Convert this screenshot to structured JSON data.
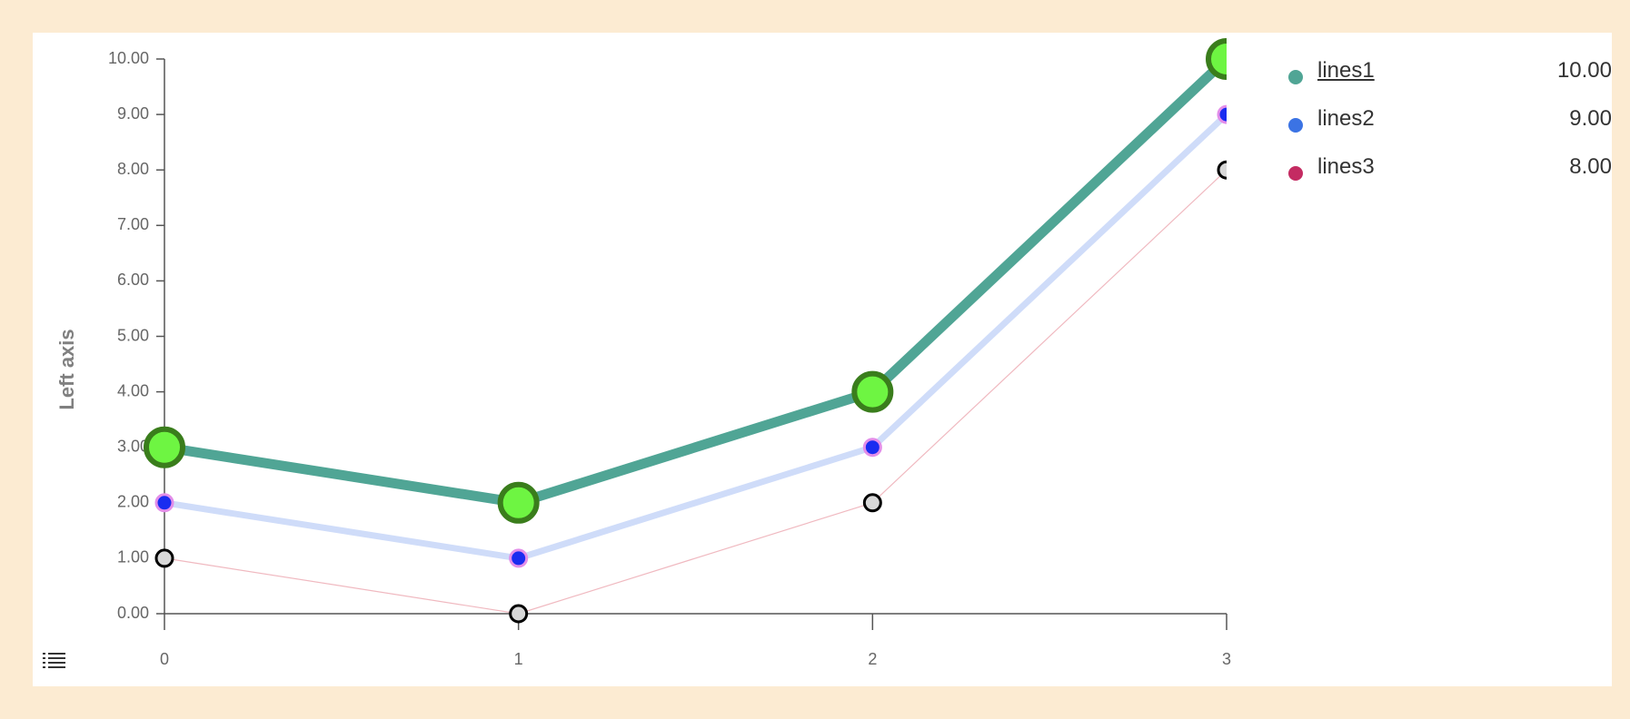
{
  "chart_data": {
    "type": "line",
    "x": [
      0,
      1,
      2,
      3
    ],
    "xticks": [
      "0",
      "1",
      "2",
      "3"
    ],
    "ylabel": "Left axis",
    "ylim": [
      0,
      10
    ],
    "yticks": [
      "0.00",
      "1.00",
      "2.00",
      "3.00",
      "4.00",
      "5.00",
      "6.00",
      "7.00",
      "8.00",
      "9.00",
      "10.00"
    ],
    "series": [
      {
        "name": "lines1",
        "values": [
          3,
          2,
          4,
          10
        ],
        "color": "#50a595",
        "legend_color": "#50a595",
        "marker_fill": "#6ef542",
        "marker_stroke": "#3a7d1c",
        "line_width": "thick",
        "marker": "large"
      },
      {
        "name": "lines2",
        "values": [
          2,
          1,
          3,
          9
        ],
        "color": "#cfdcf9",
        "legend_color": "#3b73e4",
        "marker_fill": "#1a2cf0",
        "marker_stroke": "#e38ee9",
        "line_width": "medium",
        "marker": "small"
      },
      {
        "name": "lines3",
        "values": [
          1,
          0,
          2,
          8
        ],
        "color": "#f0b9c0",
        "legend_color": "#c42b62",
        "marker_fill": "#d8d8d8",
        "marker_stroke": "#000000",
        "line_width": "thin",
        "marker": "small"
      }
    ],
    "grid": false,
    "legend_position": "right",
    "legend_values": [
      "10.00",
      "9.00",
      "8.00"
    ],
    "legend_active": "lines1"
  },
  "toolbar": {
    "menu_icon": "list-icon"
  }
}
